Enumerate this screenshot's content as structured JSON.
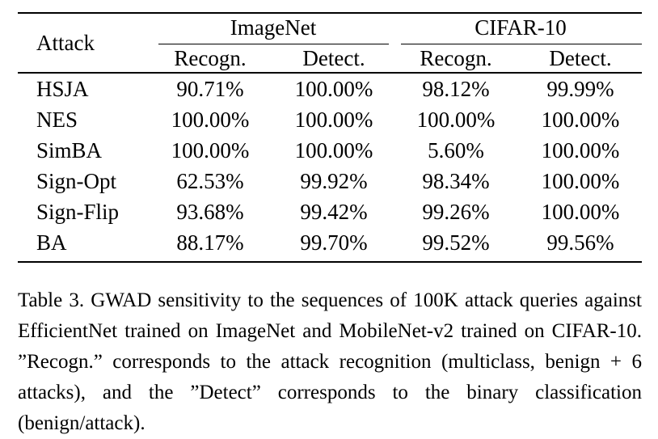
{
  "table": {
    "attack_header": "Attack",
    "groups": [
      "ImageNet",
      "CIFAR-10"
    ],
    "subheaders": [
      "Recogn.",
      "Detect.",
      "Recogn.",
      "Detect."
    ],
    "rows": [
      {
        "attack": "HSJA",
        "values": [
          "90.71%",
          "100.00%",
          "98.12%",
          "99.99%"
        ]
      },
      {
        "attack": "NES",
        "values": [
          "100.00%",
          "100.00%",
          "100.00%",
          "100.00%"
        ]
      },
      {
        "attack": "SimBA",
        "values": [
          "100.00%",
          "100.00%",
          "5.60%",
          "100.00%"
        ]
      },
      {
        "attack": "Sign-Opt",
        "values": [
          "62.53%",
          "99.92%",
          "98.34%",
          "100.00%"
        ]
      },
      {
        "attack": "Sign-Flip",
        "values": [
          "93.68%",
          "99.42%",
          "99.26%",
          "100.00%"
        ]
      },
      {
        "attack": "BA",
        "values": [
          "88.17%",
          "99.70%",
          "99.52%",
          "99.56%"
        ]
      }
    ]
  },
  "caption": "Table 3.  GWAD sensitivity to the sequences of 100K attack queries against EfficientNet trained on ImageNet and MobileNet-v2 trained on CIFAR-10.  ”Recogn.” corresponds to the attack recognition (multiclass, benign + 6 attacks), and the ”Detect” corresponds to the binary classification (benign/attack)."
}
